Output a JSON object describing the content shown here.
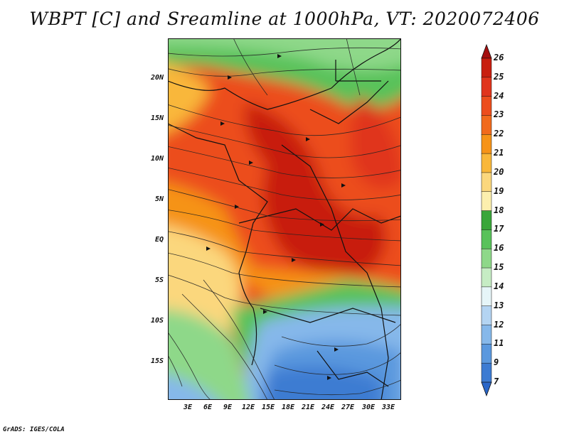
{
  "title": "WBPT [C] and Sreamline at 1000hPa, VT: 2020072406",
  "footer": "GrADS: IGES/COLA",
  "lat_labels": [
    "20N",
    "15N",
    "10N",
    "5N",
    "EQ",
    "5S",
    "10S",
    "15S"
  ],
  "lon_labels": [
    "3E",
    "6E",
    "9E",
    "12E",
    "15E",
    "18E",
    "21E",
    "24E",
    "27E",
    "30E",
    "33E"
  ],
  "colorbar": {
    "labels": [
      "26",
      "25",
      "24",
      "23",
      "22",
      "21",
      "20",
      "19",
      "18",
      "17",
      "16",
      "15",
      "14",
      "13",
      "12",
      "11",
      "9",
      "7"
    ],
    "colors": [
      "#a50f0f",
      "#c81e0f",
      "#e0341c",
      "#ec4d1c",
      "#f16a1c",
      "#f69318",
      "#f9b73a",
      "#fbd77d",
      "#fcefae",
      "#3aa63a",
      "#58c25a",
      "#8ed889",
      "#c6ecc4",
      "#e6f5f8",
      "#b4d4f2",
      "#86b8ea",
      "#5a98de",
      "#3c7bd2",
      "#2a66c8"
    ]
  },
  "colors": {
    "hot_max": "#c81e0f",
    "warm": "#ec4d1c",
    "mid": "#f9b73a",
    "cool_green": "#58c25a",
    "cold_blue": "#3c7bd2"
  }
}
